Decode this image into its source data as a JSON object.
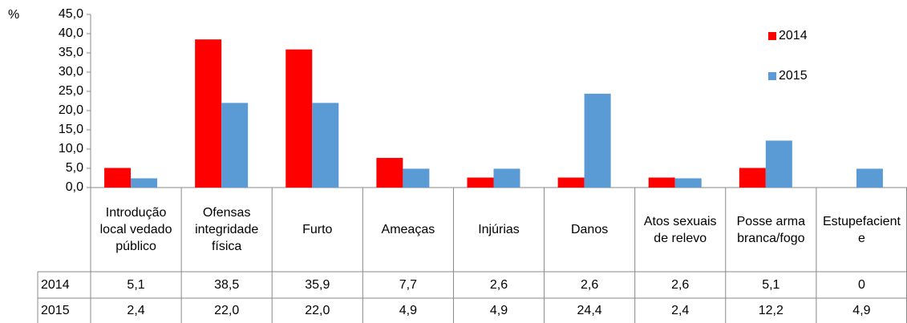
{
  "chart_data": {
    "type": "bar",
    "y_label": "%",
    "categories": [
      "Introdução local vedado público",
      "Ofensas integridade física",
      "Furto",
      "Ameaças",
      "Injúrias",
      "Danos",
      "Atos sexuais de relevo",
      "Posse arma branca/fogo",
      "Estupefaciente"
    ],
    "series": [
      {
        "name": "2014",
        "color": "#ff0000",
        "values": [
          5.1,
          38.5,
          35.9,
          7.7,
          2.6,
          2.6,
          2.6,
          5.1,
          0
        ],
        "value_labels": [
          "5,1",
          "38,5",
          "35,9",
          "7,7",
          "2,6",
          "2,6",
          "2,6",
          "5,1",
          "0"
        ]
      },
      {
        "name": "2015",
        "color": "#5b9bd5",
        "values": [
          2.4,
          22.0,
          22.0,
          4.9,
          4.9,
          24.4,
          2.4,
          12.2,
          4.9
        ],
        "value_labels": [
          "2,4",
          "22,0",
          "22,0",
          "4,9",
          "4,9",
          "24,4",
          "2,4",
          "12,2",
          "4,9"
        ]
      }
    ],
    "ylim": [
      0,
      45
    ],
    "yticks": [
      {
        "value": 0,
        "label": "0,0"
      },
      {
        "value": 5,
        "label": "5,0"
      },
      {
        "value": 10,
        "label": "10,0"
      },
      {
        "value": 15,
        "label": "15,0"
      },
      {
        "value": 20,
        "label": "20,0"
      },
      {
        "value": 25,
        "label": "25,0"
      },
      {
        "value": 30,
        "label": "30,0"
      },
      {
        "value": 35,
        "label": "35,0"
      },
      {
        "value": 40,
        "label": "40,0"
      },
      {
        "value": 45,
        "label": "45,0"
      }
    ],
    "legend": "right",
    "grid": false
  }
}
